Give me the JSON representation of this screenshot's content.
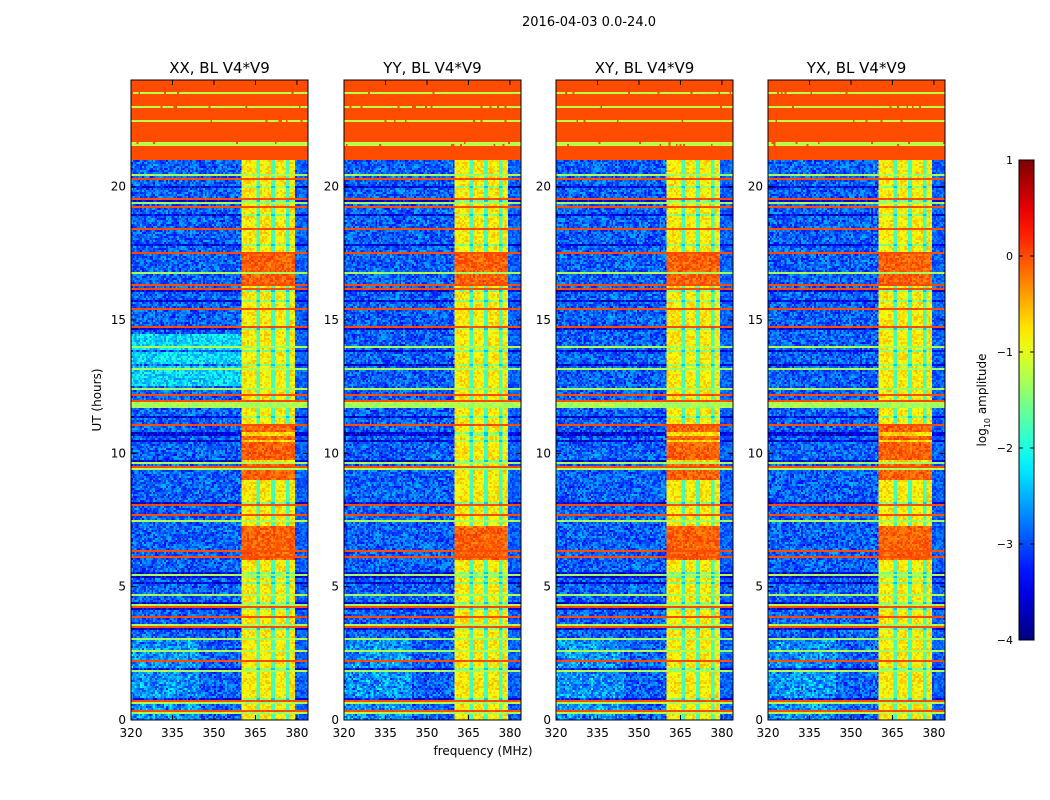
{
  "chart_data": {
    "type": "heatmap",
    "title": "2016-04-03 0.0-24.0",
    "xlabel": "frequency (MHz)",
    "ylabel": "UT (hours)",
    "xlim": [
      320,
      384
    ],
    "ylim": [
      0,
      24
    ],
    "xticks": [
      320,
      335,
      350,
      365,
      380
    ],
    "yticks": [
      0,
      5,
      10,
      15,
      20
    ],
    "panels": [
      {
        "title": "XX, BL V4*V9"
      },
      {
        "title": "YY, BL V4*V9"
      },
      {
        "title": "XY, BL V4*V9"
      },
      {
        "title": "YX, BL V4*V9"
      }
    ],
    "features": {
      "flagged_above_hours": 21,
      "flagged_level": 0,
      "background_level": -2.9,
      "rfi_band_mhz": [
        360,
        379.5
      ],
      "rfi_band_level": -0.8,
      "high_edge_mhz": [
        379.5,
        384
      ]
    },
    "colorbar": {
      "label": "log10 amplitude",
      "label_main": "log",
      "label_sub": "10",
      "label_rest": " amplitude",
      "colormap": "jet",
      "range": [
        -4,
        1
      ],
      "ticks": [
        1,
        0,
        -1,
        -2,
        -3,
        -4
      ],
      "tick_labels": [
        "1",
        "0",
        "−1",
        "−2",
        "−3",
        "−4"
      ]
    }
  }
}
